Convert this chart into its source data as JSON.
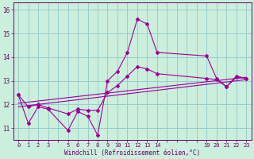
{
  "xlabel": "Windchill (Refroidissement éolien,°C)",
  "bg_color": "#cceedd",
  "grid_color": "#99cccc",
  "line_color": "#990099",
  "xlim": [
    -0.5,
    23.5
  ],
  "ylim": [
    10.5,
    16.3
  ],
  "x_labels": [
    "0",
    "1",
    "2",
    "3",
    "",
    "5",
    "6",
    "7",
    "8",
    "9",
    "10",
    "11",
    "12",
    "13",
    "14",
    "",
    "",
    "",
    "",
    "19",
    "20",
    "21",
    "22",
    "23"
  ],
  "x_positions": [
    0,
    1,
    2,
    3,
    4,
    5,
    6,
    7,
    8,
    9,
    10,
    11,
    12,
    13,
    14,
    15,
    16,
    17,
    18,
    19,
    20,
    21,
    22,
    23
  ],
  "yticks": [
    11,
    12,
    13,
    14,
    15,
    16
  ],
  "series1_x": [
    0,
    1,
    2,
    3,
    5,
    6,
    7,
    8,
    9,
    10,
    11,
    12,
    13,
    14,
    19,
    20,
    21,
    22,
    23
  ],
  "series1_xi": [
    0,
    1,
    2,
    3,
    5,
    6,
    7,
    8,
    9,
    10,
    11,
    12,
    13,
    14,
    19,
    20,
    21,
    22,
    23
  ],
  "series1_y": [
    12.4,
    11.2,
    11.9,
    11.8,
    10.9,
    11.7,
    11.5,
    10.7,
    13.0,
    13.4,
    14.2,
    15.6,
    15.4,
    14.2,
    14.05,
    13.1,
    12.75,
    13.2,
    13.1
  ],
  "series2_x": [
    0,
    1,
    2,
    3,
    5,
    6,
    7,
    8,
    9,
    10,
    11,
    12,
    13,
    14,
    19,
    20,
    21,
    22,
    23
  ],
  "series2_xi": [
    0,
    1,
    2,
    3,
    5,
    6,
    7,
    8,
    9,
    10,
    11,
    12,
    13,
    14,
    19,
    20,
    21,
    22,
    23
  ],
  "series2_y": [
    12.4,
    11.9,
    12.0,
    11.85,
    11.6,
    11.8,
    11.75,
    11.75,
    12.5,
    12.8,
    13.2,
    13.6,
    13.5,
    13.3,
    13.1,
    13.05,
    12.75,
    13.15,
    13.1
  ],
  "trend1_x": [
    0,
    23
  ],
  "trend1_y": [
    12.05,
    13.15
  ],
  "trend2_x": [
    0,
    23
  ],
  "trend2_y": [
    11.9,
    13.05
  ]
}
